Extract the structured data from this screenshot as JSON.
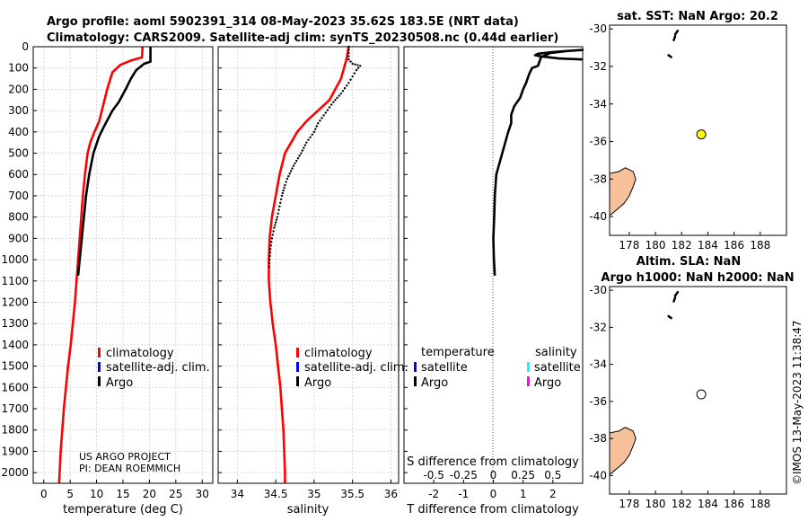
{
  "header": {
    "line1": "Argo profile: aoml 5902391_314 08-May-2023 35.62S 183.5E (NRT data)",
    "line2": "Climatology: CARS2009. Satellite-adj clim: synTS_20230508.nc (0.44d earlier)"
  },
  "credit": "©IMOS 13-May-2023 11:38:47",
  "project_note": [
    "US ARGO PROJECT",
    "PI: DEAN ROEMMICH"
  ],
  "colors": {
    "climatology": "#ff0000",
    "satellite": "#0000ff",
    "argo": "#000000",
    "sal_satellite": "#00ffff",
    "sal_argo": "#ff00ff",
    "land": "#f5c09a",
    "float": "#ffff00"
  },
  "chart_data": [
    {
      "type": "line",
      "id": "temperature",
      "xlabel": "temperature (deg C)",
      "xlim": [
        -2,
        32
      ],
      "xticks": [
        0,
        5,
        10,
        15,
        20,
        25,
        30
      ],
      "ylim": [
        2050,
        0
      ],
      "yticks": [
        0,
        100,
        200,
        300,
        400,
        500,
        600,
        700,
        800,
        900,
        1000,
        1100,
        1200,
        1300,
        1400,
        1500,
        1600,
        1700,
        1800,
        1900,
        2000
      ],
      "legend": [
        "climatology",
        "satellite-adj. clim.",
        "Argo"
      ],
      "series": [
        {
          "name": "climatology",
          "color": "#ff0000",
          "style": "line",
          "points": [
            [
              18.7,
              0
            ],
            [
              18.6,
              50
            ],
            [
              16.5,
              65
            ],
            [
              14.5,
              85
            ],
            [
              13,
              120
            ],
            [
              12,
              200
            ],
            [
              11,
              300
            ],
            [
              10.5,
              350
            ],
            [
              9.6,
              400
            ],
            [
              8.8,
              450
            ],
            [
              8.3,
              500
            ],
            [
              7.8,
              600
            ],
            [
              7.4,
              700
            ],
            [
              7.1,
              800
            ],
            [
              6.8,
              900
            ],
            [
              6.5,
              1000
            ],
            [
              6.2,
              1100
            ],
            [
              5.9,
              1200
            ],
            [
              5.5,
              1300
            ],
            [
              5.1,
              1400
            ],
            [
              4.6,
              1500
            ],
            [
              4.2,
              1600
            ],
            [
              3.8,
              1700
            ],
            [
              3.5,
              1800
            ],
            [
              3.2,
              1900
            ],
            [
              3,
              2000
            ],
            [
              2.9,
              2050
            ]
          ]
        },
        {
          "name": "Argo",
          "color": "#000000",
          "style": "line",
          "points": [
            [
              20.2,
              0
            ],
            [
              20.2,
              70
            ],
            [
              19,
              80
            ],
            [
              17.5,
              110
            ],
            [
              16.5,
              150
            ],
            [
              15.5,
              200
            ],
            [
              14.2,
              260
            ],
            [
              13,
              300
            ],
            [
              11.5,
              370
            ],
            [
              10.5,
              420
            ],
            [
              9.4,
              500
            ],
            [
              8.6,
              600
            ],
            [
              8,
              700
            ],
            [
              7.6,
              800
            ],
            [
              7.2,
              900
            ],
            [
              6.8,
              1000
            ],
            [
              6.5,
              1075
            ]
          ]
        }
      ]
    },
    {
      "type": "scatter",
      "id": "salinity",
      "xlabel": "salinity",
      "xlim": [
        33.75,
        36.1
      ],
      "xticks": [
        34,
        34.5,
        35,
        35.5,
        36
      ],
      "xtick_labels": [
        "34",
        "34.5",
        "35",
        "35.5",
        "36"
      ],
      "ylim": [
        2050,
        0
      ],
      "legend": [
        "climatology",
        "satellite-adj. clim.",
        "Argo"
      ],
      "series": [
        {
          "name": "climatology",
          "color": "#ff0000",
          "style": "line",
          "points": [
            [
              35.45,
              0
            ],
            [
              35.42,
              60
            ],
            [
              35.35,
              150
            ],
            [
              35.2,
              250
            ],
            [
              35.05,
              300
            ],
            [
              34.9,
              350
            ],
            [
              34.78,
              400
            ],
            [
              34.7,
              450
            ],
            [
              34.62,
              500
            ],
            [
              34.55,
              600
            ],
            [
              34.5,
              700
            ],
            [
              34.45,
              800
            ],
            [
              34.42,
              900
            ],
            [
              34.41,
              1000
            ],
            [
              34.41,
              1100
            ],
            [
              34.43,
              1200
            ],
            [
              34.46,
              1300
            ],
            [
              34.5,
              1400
            ],
            [
              34.53,
              1500
            ],
            [
              34.56,
              1600
            ],
            [
              34.58,
              1700
            ],
            [
              34.6,
              1800
            ],
            [
              34.61,
              1900
            ],
            [
              34.62,
              2000
            ],
            [
              34.62,
              2050
            ]
          ]
        },
        {
          "name": "Argo",
          "color": "#000000",
          "style": "dots",
          "points": [
            [
              35.45,
              0
            ],
            [
              35.45,
              60
            ],
            [
              35.5,
              80
            ],
            [
              35.6,
              90
            ],
            [
              35.55,
              110
            ],
            [
              35.5,
              140
            ],
            [
              35.45,
              170
            ],
            [
              35.35,
              220
            ],
            [
              35.25,
              260
            ],
            [
              35.15,
              310
            ],
            [
              35.05,
              360
            ],
            [
              35,
              400
            ],
            [
              34.9,
              450
            ],
            [
              34.83,
              500
            ],
            [
              34.73,
              560
            ],
            [
              34.65,
              620
            ],
            [
              34.62,
              650
            ],
            [
              34.58,
              700
            ],
            [
              34.55,
              750
            ],
            [
              34.52,
              800
            ],
            [
              34.48,
              850
            ],
            [
              34.45,
              900
            ],
            [
              34.43,
              950
            ],
            [
              34.42,
              1000
            ],
            [
              34.41,
              1050
            ]
          ]
        }
      ]
    },
    {
      "type": "line",
      "id": "difference",
      "xlabel": "T difference from climatology",
      "xlabel_top": "S difference from climatology",
      "xlim": [
        -3,
        3
      ],
      "xticks": [
        -2,
        -1,
        0,
        1,
        2
      ],
      "xticks_top": [
        -0.5,
        -0.25,
        0,
        0.25,
        0.5
      ],
      "ylim": [
        2050,
        0
      ],
      "legend_temperature_title": "temperature",
      "legend_salinity_title": "salinity",
      "legend": [
        "satellite",
        "Argo",
        "satellite",
        "Argo"
      ],
      "series": [
        {
          "name": "Argo",
          "color": "#000000",
          "style": "line",
          "points": [
            [
              3,
              60
            ],
            [
              2.2,
              55
            ],
            [
              1.6,
              45
            ],
            [
              1.4,
              40
            ],
            [
              1.5,
              33
            ],
            [
              2,
              25
            ],
            [
              3,
              15
            ],
            [
              2.5,
              20
            ],
            [
              1.9,
              30
            ],
            [
              1.6,
              50
            ],
            [
              1.5,
              90
            ],
            [
              1.3,
              100
            ],
            [
              1.2,
              130
            ],
            [
              1.1,
              170
            ],
            [
              1,
              200
            ],
            [
              0.9,
              240
            ],
            [
              0.7,
              280
            ],
            [
              0.6,
              320
            ],
            [
              0.6,
              360
            ],
            [
              0.5,
              400
            ],
            [
              0.4,
              450
            ],
            [
              0.3,
              500
            ],
            [
              0.2,
              550
            ],
            [
              0.1,
              600
            ],
            [
              0.05,
              700
            ],
            [
              0.03,
              800
            ],
            [
              0,
              900
            ],
            [
              0.02,
              1000
            ],
            [
              0.05,
              1075
            ]
          ]
        }
      ]
    },
    {
      "type": "scatter",
      "id": "map-sst",
      "title": "sat. SST: NaN Argo: 20.2",
      "xlim": [
        176.5,
        190
      ],
      "ylim": [
        -41,
        -29.8
      ],
      "xticks": [
        178,
        180,
        182,
        184,
        186,
        188
      ],
      "yticks": [
        -30,
        -32,
        -34,
        -36,
        -38,
        -40
      ],
      "float": {
        "lon": 183.5,
        "lat": -35.62,
        "filled": true
      }
    },
    {
      "type": "scatter",
      "id": "map-sla",
      "title_lines": [
        "Altim. SLA: NaN",
        "Argo h1000: NaN h2000: NaN"
      ],
      "xlim": [
        176.5,
        190
      ],
      "ylim": [
        -41,
        -29.8
      ],
      "xticks": [
        178,
        180,
        182,
        184,
        186,
        188
      ],
      "yticks": [
        -30,
        -32,
        -34,
        -36,
        -38,
        -40
      ],
      "float": {
        "lon": 183.5,
        "lat": -35.62,
        "filled": false
      }
    }
  ]
}
